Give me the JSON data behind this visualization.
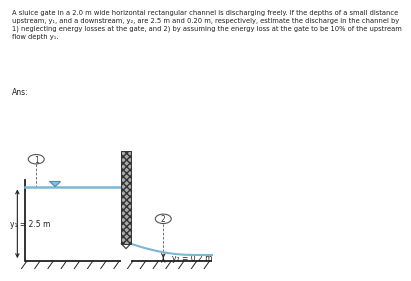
{
  "title_line1": "A sluice gate in a 2.0 m wide horizontal rectangular channel is discharging freely. If the depths of a small distance",
  "title_line2": "upstream, y₁, and a downstream, y₂, are 2.5 m and 0.20 m, respectively, estimate the discharge in the channel by",
  "title_line3": "1) neglecting energy losses at the gate, and 2) by assuming the energy loss at the gate to be 10% of the upstream",
  "title_line4": "flow depth y₁.",
  "ans_label": "Ans:",
  "y1_label": "y₁ = 2.5 m",
  "y2_label": "y₂ = 0.2 m",
  "bg_color": "#ffffff",
  "water_color": "#7ab8d4",
  "gate_hatch_color": "#555555",
  "channel_color": "#222222",
  "text_color": "#222222",
  "label_color": "#333333"
}
